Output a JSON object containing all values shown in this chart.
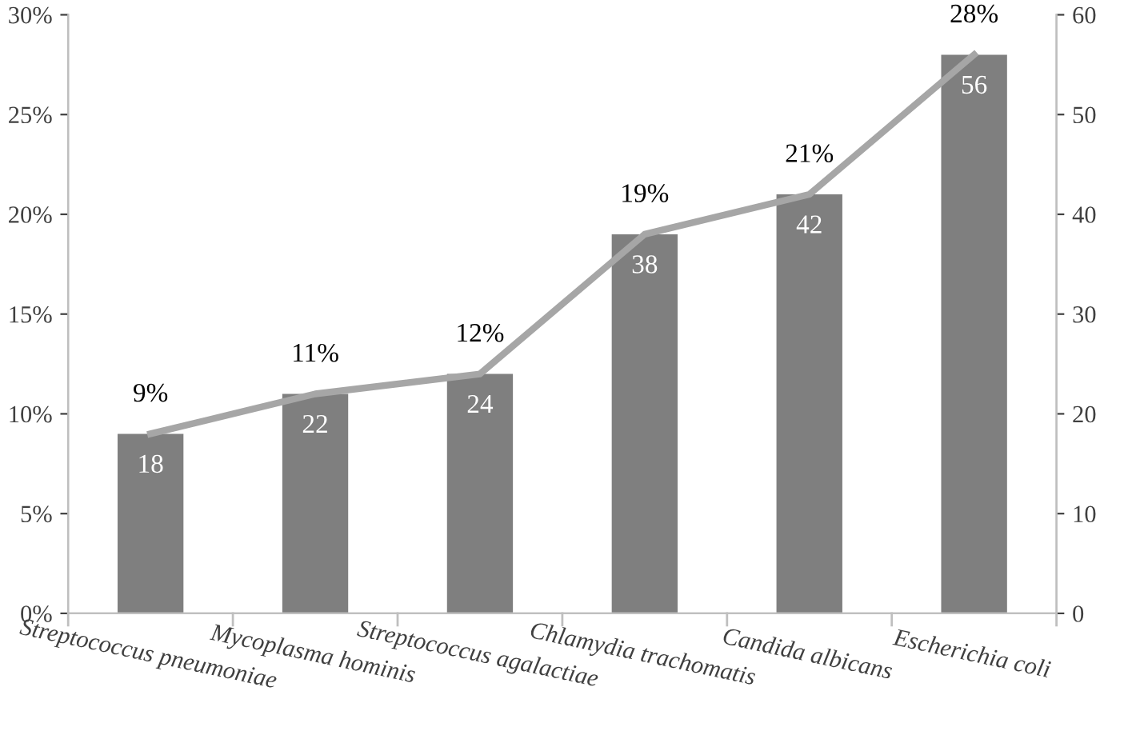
{
  "chart_data": {
    "type": "bar",
    "categories": [
      "Streptococcus pneumoniae",
      "Mycoplasma hominis",
      "Streptococcus agalactiae",
      "Chlamydia trachomatis",
      "Candida albicans",
      "Escherichia coli"
    ],
    "series": [
      {
        "axis": "y2",
        "color": "#7f7f7f",
        "values": [
          18,
          22,
          24,
          38,
          42,
          56
        ],
        "value_labels": [
          "18",
          "22",
          "24",
          "38",
          "42",
          "56"
        ]
      },
      {
        "type": "line",
        "axis": "y",
        "color": "#a6a6a6",
        "values": [
          9,
          11,
          12,
          19,
          21,
          28
        ],
        "value_labels": [
          "9%",
          "11%",
          "12%",
          "19%",
          "21%",
          "28%"
        ]
      }
    ],
    "ylim": [
      0,
      30
    ],
    "yticks": [
      {
        "value": 0,
        "label": "0%"
      },
      {
        "value": 5,
        "label": "5%"
      },
      {
        "value": 10,
        "label": "10%"
      },
      {
        "value": 15,
        "label": "15%"
      },
      {
        "value": 20,
        "label": "20%"
      },
      {
        "value": 25,
        "label": "25%"
      },
      {
        "value": 30,
        "label": "30%"
      }
    ],
    "y2lim": [
      0,
      60
    ],
    "y2ticks": [
      0,
      10,
      20,
      30,
      40,
      50,
      60
    ],
    "grid": false,
    "legend": false,
    "marker": "none",
    "line_style": "solid"
  }
}
